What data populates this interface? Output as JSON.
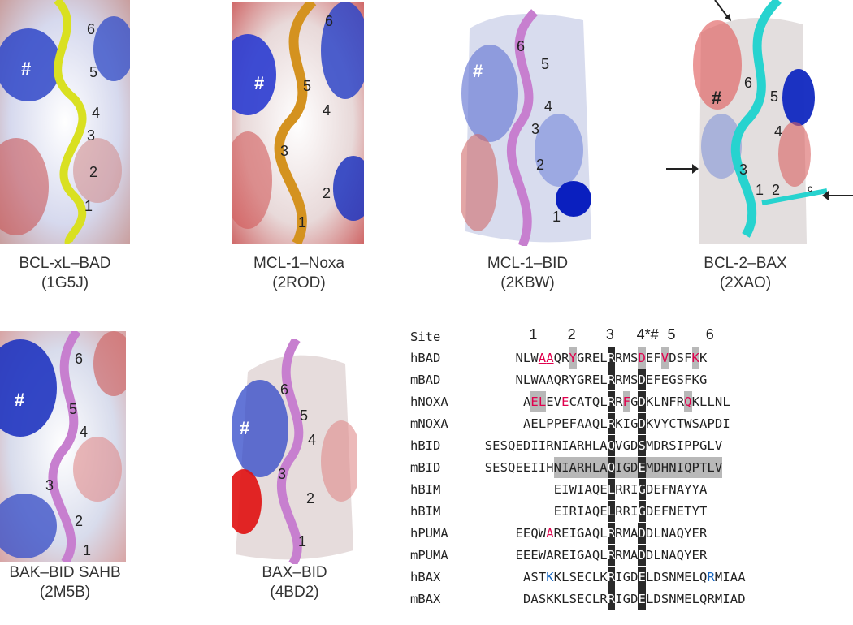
{
  "panels": [
    {
      "caption_line1": "BCL-xL–BAD",
      "caption_line2": "(1G5J)",
      "helix_color": "#d9e021",
      "site_labels": [
        "6",
        "5",
        "4",
        "3",
        "2",
        "1"
      ],
      "hash": "#"
    },
    {
      "caption_line1": "MCL-1–Noxa",
      "caption_line2": "(2ROD)",
      "helix_color": "#d4921f",
      "site_labels": [
        "6",
        "5",
        "4",
        "3",
        "2",
        "1"
      ],
      "hash": "#"
    },
    {
      "caption_line1": "MCL-1–BID",
      "caption_line2": "(2KBW)",
      "helix_color": "#c77fcf",
      "site_labels": [
        "6",
        "5",
        "4",
        "3",
        "2",
        "1"
      ],
      "hash": "#"
    },
    {
      "caption_line1": "BCL-2–BAX",
      "caption_line2": "(2XAO)",
      "helix_color": "#27d3cf",
      "site_labels": [
        "6",
        "5",
        "4",
        "3",
        "2",
        "1"
      ],
      "hash": "#",
      "c_label": "c"
    },
    {
      "caption_line1": "BAK–BID SAHB",
      "caption_line2": "(2M5B)",
      "helix_color": "#c77fcf",
      "site_labels": [
        "6",
        "5",
        "4",
        "3",
        "2",
        "1"
      ],
      "hash": "#"
    },
    {
      "caption_line1": "BAX–BID",
      "caption_line2": "(4BD2)",
      "helix_color": "#c77fcf",
      "site_labels": [
        "6",
        "5",
        "4",
        "3",
        "2",
        "1"
      ],
      "hash": "#"
    }
  ],
  "alignment": {
    "site_header": "Site",
    "site_numbers": [
      {
        "label": "1",
        "col": 3
      },
      {
        "label": "2",
        "col": 8
      },
      {
        "label": "3",
        "col": 13
      },
      {
        "label": "4*#",
        "col": 17
      },
      {
        "label": "5",
        "col": 21
      },
      {
        "label": "6",
        "col": 26
      }
    ],
    "rows": [
      {
        "name": "hBAD",
        "seq": "NLWAAQRYGRELRRMSDEFVDSFKK",
        "offset": 1
      },
      {
        "name": "mBAD",
        "seq": "NLWAAQRYGRELRRMSDEFEGSFKG",
        "offset": 1
      },
      {
        "name": "hNOXA",
        "seq": "AELEVECATQLRRFGDKLNFRQKLLNL",
        "offset": 2
      },
      {
        "name": "mNOXA",
        "seq": "AELPPEFAAQLRKIGDKVYCTWSAPDI",
        "offset": 2
      },
      {
        "name": "hBID",
        "seq": "SESQEDIIRNIARHLAQVGDSMDRSIPPGLV",
        "offset": -3
      },
      {
        "name": "mBID",
        "seq": "SESQEEIIHNIARHLAQIGDEMDHNIQPTLV",
        "offset": -3
      },
      {
        "name": "hBIM",
        "seq": "EIWIAQELRRIGDEFNAYYA",
        "offset": 6
      },
      {
        "name": "hBIM",
        "seq": "EIRIAQELRRIGDEFNETYT",
        "offset": 6
      },
      {
        "name": "hPUMA",
        "seq": "EEQWAREIGAQLRRMADDLNAQYER",
        "offset": 1
      },
      {
        "name": "mPUMA",
        "seq": "EEEWAREIGAQLRRMADDLNAQYER",
        "offset": 1
      },
      {
        "name": "hBAX",
        "seq": "ASTKKLSECLKRIGDELDSNMELQRMIAA",
        "offset": 2
      },
      {
        "name": "mBAX",
        "seq": "DASKKLSECLRRIGDELDSNMELQRMIAD",
        "offset": 2
      }
    ],
    "colors": {
      "box": "#2a2a2a",
      "highlight": "#b8b8b8",
      "red": "#e0004d",
      "blue": "#1565c0"
    }
  }
}
